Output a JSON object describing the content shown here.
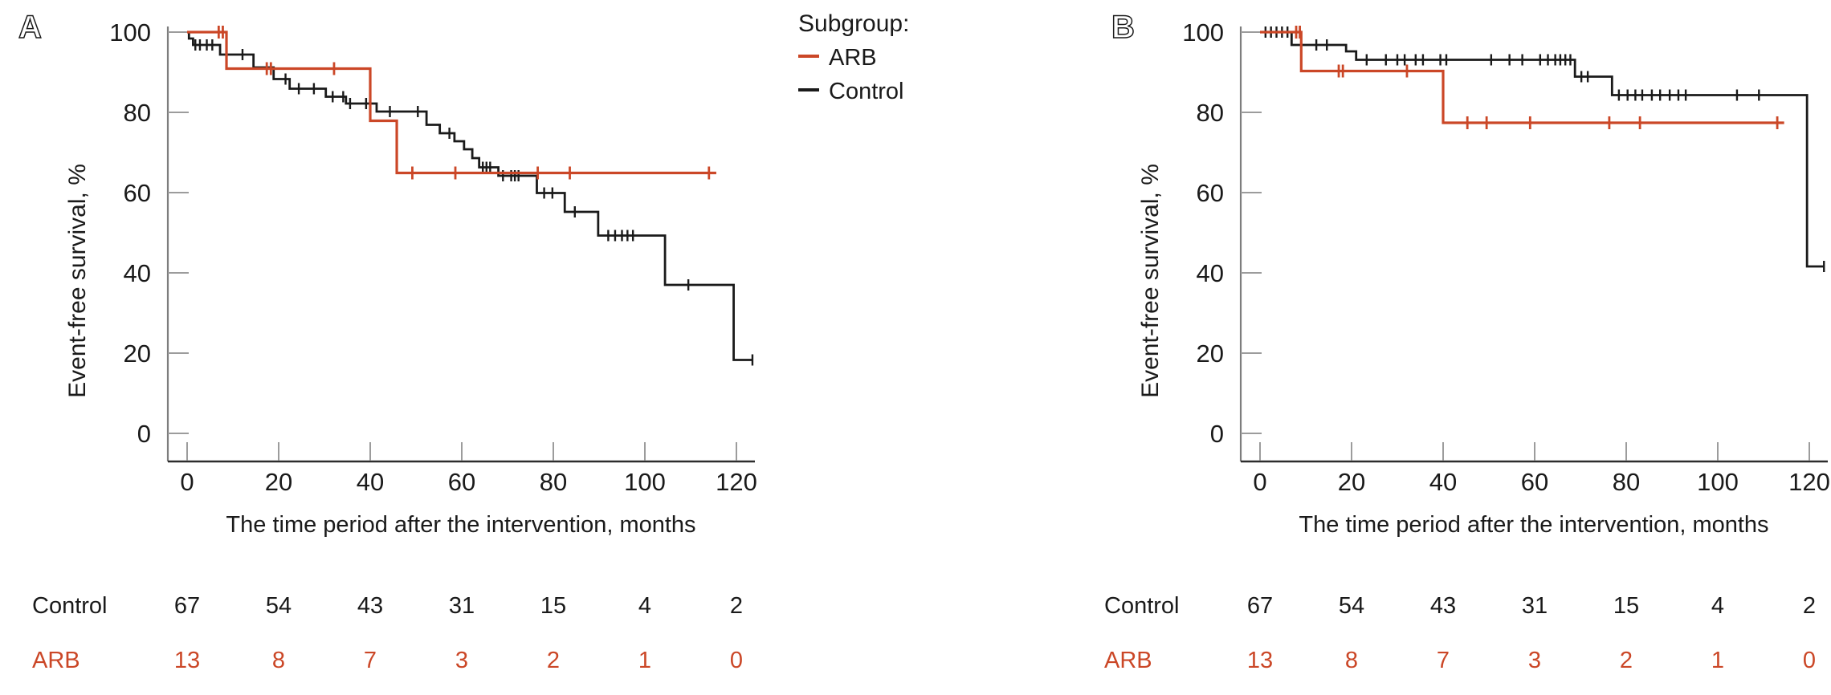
{
  "legend": {
    "title": "Subgroup:",
    "items": [
      {
        "label": "ARB",
        "color": "#cb4727"
      },
      {
        "label": "Control",
        "color": "#1a1a1a"
      }
    ]
  },
  "axes": {
    "x_label": "The time period after the intervention, months",
    "y_label": "Event-free survival, %",
    "x_ticks": [
      "0",
      "20",
      "40",
      "60",
      "80",
      "100",
      "120"
    ],
    "y_ticks": [
      "100",
      "80",
      "60",
      "40",
      "20",
      "0"
    ]
  },
  "risk_table": {
    "rows": [
      {
        "label": "Control",
        "color": "#1a1a1a",
        "values": [
          "67",
          "54",
          "43",
          "31",
          "15",
          "4",
          "2"
        ]
      },
      {
        "label": "ARB",
        "color": "#cb4727",
        "values": [
          "13",
          "8",
          "7",
          "3",
          "2",
          "1",
          "0"
        ]
      }
    ]
  },
  "chart_data": [
    {
      "panel_label": "A",
      "type": "line",
      "subtype": "kaplan-meier-step",
      "title": "",
      "xlabel": "The time period after the intervention, months",
      "ylabel": "Event-free survival, %",
      "xlim": [
        0,
        124
      ],
      "ylim": [
        0,
        100
      ],
      "x_ticks": [
        0,
        20,
        40,
        60,
        80,
        100,
        120
      ],
      "y_ticks": [
        100,
        80,
        60,
        40,
        20,
        0
      ],
      "grid": false,
      "legend_position": "outside-top-right",
      "series": [
        {
          "name": "Control",
          "color": "#1a1a1a",
          "steps": [
            [
              0,
              100
            ],
            [
              0.4,
              98.4
            ],
            [
              1.3,
              96.8
            ],
            [
              7.2,
              94.4
            ],
            [
              14.5,
              91.2
            ],
            [
              18.9,
              88.3
            ],
            [
              22.4,
              85.9
            ],
            [
              30.3,
              83.9
            ],
            [
              34.7,
              82.2
            ],
            [
              41.4,
              80.2
            ],
            [
              52.3,
              76.9
            ],
            [
              55.2,
              74.8
            ],
            [
              58.4,
              72.8
            ],
            [
              60.5,
              70.8
            ],
            [
              62.3,
              68.6
            ],
            [
              63.8,
              66.3
            ],
            [
              68,
              64.2
            ],
            [
              76.4,
              59.9
            ],
            [
              82.5,
              55.2
            ],
            [
              89.8,
              49.3
            ],
            [
              104.4,
              37
            ],
            [
              119.4,
              18.3
            ]
          ],
          "end": 123.5,
          "end_tick": true,
          "censors": [
            [
              1.8,
              96.8
            ],
            [
              2.8,
              96.8
            ],
            [
              4.3,
              96.8
            ],
            [
              5.5,
              96.8
            ],
            [
              12.1,
              94.4
            ],
            [
              21.5,
              88.3
            ],
            [
              24.4,
              85.9
            ],
            [
              27.7,
              85.9
            ],
            [
              31.8,
              83.9
            ],
            [
              34.1,
              83.9
            ],
            [
              35.6,
              82.2
            ],
            [
              39.1,
              82.2
            ],
            [
              44.3,
              80.2
            ],
            [
              50.4,
              80.2
            ],
            [
              57.3,
              74.8
            ],
            [
              64.6,
              66.3
            ],
            [
              65.4,
              66.3
            ],
            [
              66.2,
              66.3
            ],
            [
              69,
              64.2
            ],
            [
              70.8,
              64.2
            ],
            [
              71.6,
              64.2
            ],
            [
              72.4,
              64.2
            ],
            [
              78,
              59.9
            ],
            [
              79.8,
              59.9
            ],
            [
              84.7,
              55.2
            ],
            [
              92,
              49.3
            ],
            [
              93.5,
              49.3
            ],
            [
              95,
              49.3
            ],
            [
              96.2,
              49.3
            ],
            [
              97.4,
              49.3
            ],
            [
              109.5,
              37
            ]
          ]
        },
        {
          "name": "ARB",
          "color": "#cb4727",
          "steps": [
            [
              0,
              100
            ],
            [
              8.6,
              90.9
            ],
            [
              40,
              77.9
            ],
            [
              45.8,
              64.9
            ]
          ],
          "end": 115.6,
          "end_tick": false,
          "censors": [
            [
              6.9,
              100
            ],
            [
              7.8,
              100
            ],
            [
              17.4,
              90.9
            ],
            [
              18.3,
              90.9
            ],
            [
              32.1,
              90.9
            ],
            [
              49.2,
              64.9
            ],
            [
              58.6,
              64.9
            ],
            [
              76.6,
              64.9
            ],
            [
              83.6,
              64.9
            ],
            [
              114,
              64.9
            ]
          ]
        }
      ],
      "at_risk": {
        "times": [
          0,
          20,
          40,
          60,
          80,
          100,
          120
        ],
        "Control": [
          67,
          54,
          43,
          31,
          15,
          4,
          2
        ],
        "ARB": [
          13,
          8,
          7,
          3,
          2,
          1,
          0
        ]
      }
    },
    {
      "panel_label": "B",
      "type": "line",
      "subtype": "kaplan-meier-step",
      "title": "",
      "xlabel": "The time period after the intervention, months",
      "ylabel": "Event-free survival, %",
      "xlim": [
        0,
        124
      ],
      "ylim": [
        0,
        100
      ],
      "x_ticks": [
        0,
        20,
        40,
        60,
        80,
        100,
        120
      ],
      "y_ticks": [
        100,
        80,
        60,
        40,
        20,
        0
      ],
      "grid": false,
      "legend_position": "none",
      "series": [
        {
          "name": "Control",
          "color": "#1a1a1a",
          "steps": [
            [
              0,
              100
            ],
            [
              6.9,
              96.8
            ],
            [
              18.8,
              95.2
            ],
            [
              21,
              93.1
            ],
            [
              68.8,
              88.9
            ],
            [
              76.9,
              84.3
            ],
            [
              119.5,
              41.6
            ]
          ],
          "end": 123.2,
          "end_tick": true,
          "censors": [
            [
              1.2,
              100
            ],
            [
              2.4,
              100
            ],
            [
              3.6,
              100
            ],
            [
              4.8,
              100
            ],
            [
              6,
              100
            ],
            [
              12.3,
              96.8
            ],
            [
              14.6,
              96.8
            ],
            [
              23.3,
              93.1
            ],
            [
              27.5,
              93.1
            ],
            [
              30,
              93.1
            ],
            [
              31.6,
              93.1
            ],
            [
              34,
              93.1
            ],
            [
              35.6,
              93.1
            ],
            [
              39.4,
              93.1
            ],
            [
              40.7,
              93.1
            ],
            [
              50.5,
              93.1
            ],
            [
              54.5,
              93.1
            ],
            [
              57.3,
              93.1
            ],
            [
              61.2,
              93.1
            ],
            [
              62.9,
              93.1
            ],
            [
              64.5,
              93.1
            ],
            [
              65.6,
              93.1
            ],
            [
              66.7,
              93.1
            ],
            [
              67.8,
              93.1
            ],
            [
              70.2,
              88.9
            ],
            [
              71.6,
              88.9
            ],
            [
              78.4,
              84.3
            ],
            [
              80.3,
              84.3
            ],
            [
              82,
              84.3
            ],
            [
              83.5,
              84.3
            ],
            [
              85.6,
              84.3
            ],
            [
              87.4,
              84.3
            ],
            [
              89.5,
              84.3
            ],
            [
              91.4,
              84.3
            ],
            [
              93,
              84.3
            ],
            [
              104.2,
              84.3
            ],
            [
              109,
              84.3
            ]
          ]
        },
        {
          "name": "ARB",
          "color": "#cb4727",
          "steps": [
            [
              0,
              100
            ],
            [
              9,
              90.3
            ],
            [
              40,
              77.4
            ]
          ],
          "end": 114.5,
          "end_tick": false,
          "censors": [
            [
              7.9,
              100
            ],
            [
              8.7,
              100
            ],
            [
              17.2,
              90.3
            ],
            [
              18.1,
              90.3
            ],
            [
              32.1,
              90.3
            ],
            [
              45.3,
              77.4
            ],
            [
              49.5,
              77.4
            ],
            [
              59,
              77.4
            ],
            [
              76.3,
              77.4
            ],
            [
              83,
              77.4
            ],
            [
              113,
              77.4
            ]
          ]
        }
      ],
      "at_risk": {
        "times": [
          0,
          20,
          40,
          60,
          80,
          100,
          120
        ],
        "Control": [
          67,
          54,
          43,
          31,
          15,
          4,
          2
        ],
        "ARB": [
          13,
          8,
          7,
          3,
          2,
          1,
          0
        ]
      }
    }
  ]
}
